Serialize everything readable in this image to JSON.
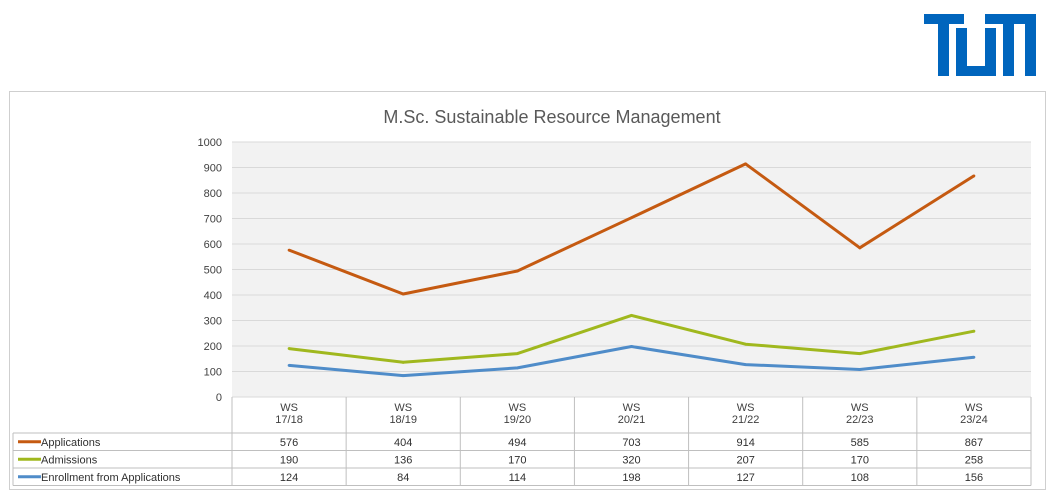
{
  "logo": {
    "text": "TUM",
    "color": "#0065BD"
  },
  "chart_data": {
    "type": "line",
    "title": "M.Sc. Sustainable Resource Management",
    "categories": [
      [
        "WS",
        "17/18"
      ],
      [
        "WS",
        "18/19"
      ],
      [
        "WS",
        "19/20"
      ],
      [
        "WS",
        "20/21"
      ],
      [
        "WS",
        "21/22"
      ],
      [
        "WS",
        "22/23"
      ],
      [
        "WS",
        "23/24"
      ]
    ],
    "ylim": [
      0,
      1000
    ],
    "yticks": [
      0,
      100,
      200,
      300,
      400,
      500,
      600,
      700,
      800,
      900,
      1000
    ],
    "grid": true,
    "plot_background": "#F2F2F2",
    "data_table": true,
    "series": [
      {
        "name": "Applications",
        "color": "#C55A11",
        "values": [
          576,
          404,
          494,
          703,
          914,
          585,
          867
        ]
      },
      {
        "name": "Admissions",
        "color": "#A0B81E",
        "values": [
          190,
          136,
          170,
          320,
          207,
          170,
          258
        ]
      },
      {
        "name": "Enrollment from Applications",
        "color": "#4F8CC9",
        "values": [
          124,
          84,
          114,
          198,
          127,
          108,
          156
        ]
      }
    ]
  }
}
